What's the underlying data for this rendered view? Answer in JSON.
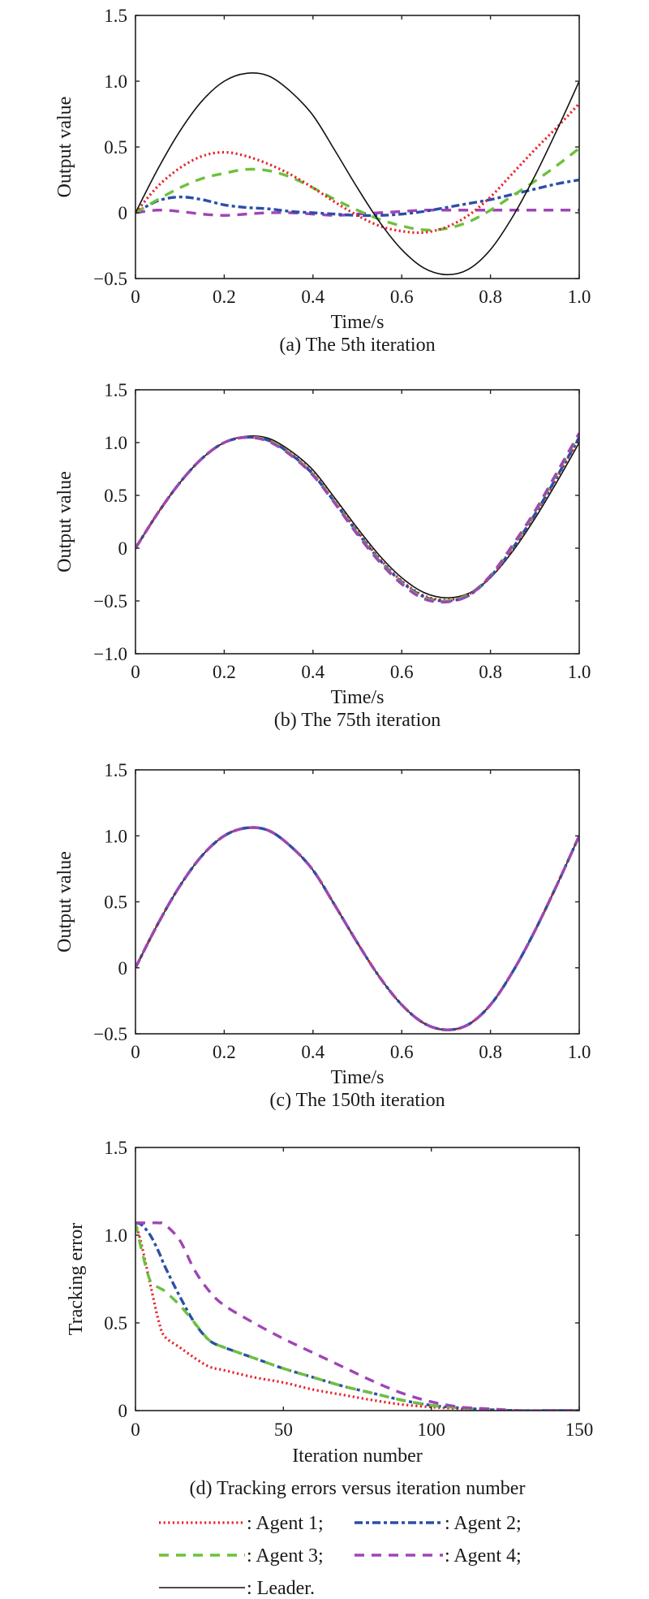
{
  "colors": {
    "agent1": "#e8232b",
    "agent2": "#2b4ea8",
    "agent3": "#6cc13d",
    "agent4": "#a045b5",
    "leader": "#111111"
  },
  "legend": {
    "entries": [
      {
        "series": "agent1",
        "label": ": Agent 1;"
      },
      {
        "series": "agent2",
        "label": ": Agent 2;"
      },
      {
        "series": "agent3",
        "label": ": Agent 3;"
      },
      {
        "series": "agent4",
        "label": ": Agent 4;"
      },
      {
        "series": "leader",
        "label": ": Leader."
      }
    ],
    "placement": "bottom"
  },
  "chart_data": [
    {
      "type": "line",
      "caption": "(a) The 5th iteration",
      "xlabel": "Time/s",
      "ylabel": "Output value",
      "xlim": [
        0,
        1.0
      ],
      "ylim": [
        -0.5,
        1.5
      ],
      "xticks": [
        0,
        0.2,
        0.4,
        0.6,
        0.8,
        1.0
      ],
      "xtick_labels": [
        "0",
        "0.2",
        "0.4",
        "0.6",
        "0.8",
        "1.0"
      ],
      "yticks": [
        -0.5,
        0,
        0.5,
        1.0,
        1.5
      ],
      "ytick_labels": [
        "−0.5",
        "0",
        "0.5",
        "1.0",
        "1.5"
      ],
      "grid": false,
      "x": [
        0,
        0.05,
        0.1,
        0.15,
        0.2,
        0.25,
        0.3,
        0.35,
        0.4,
        0.45,
        0.5,
        0.55,
        0.6,
        0.65,
        0.7,
        0.75,
        0.8,
        0.85,
        0.9,
        0.95,
        1.0
      ],
      "series": [
        {
          "name": "Leader",
          "key": "leader",
          "values": [
            0,
            0.33,
            0.62,
            0.85,
            1.0,
            1.06,
            1.04,
            0.92,
            0.74,
            0.47,
            0.19,
            -0.07,
            -0.28,
            -0.42,
            -0.47,
            -0.43,
            -0.28,
            -0.03,
            0.28,
            0.63,
            1.0
          ]
        },
        {
          "name": "Agent 1",
          "key": "agent1",
          "values": [
            0,
            0.2,
            0.34,
            0.43,
            0.46,
            0.43,
            0.37,
            0.29,
            0.19,
            0.08,
            -0.02,
            -0.1,
            -0.14,
            -0.15,
            -0.11,
            -0.02,
            0.12,
            0.3,
            0.48,
            0.65,
            0.83
          ]
        },
        {
          "name": "Agent 2",
          "key": "agent2",
          "values": [
            0,
            0.09,
            0.12,
            0.1,
            0.06,
            0.04,
            0.03,
            0.01,
            0,
            -0.01,
            -0.02,
            -0.02,
            -0.01,
            0.01,
            0.04,
            0.07,
            0.1,
            0.14,
            0.18,
            0.22,
            0.25
          ]
        },
        {
          "name": "Agent 3",
          "key": "agent3",
          "values": [
            0,
            0.1,
            0.19,
            0.26,
            0.3,
            0.33,
            0.32,
            0.27,
            0.19,
            0.1,
            0.02,
            -0.05,
            -0.1,
            -0.13,
            -0.12,
            -0.07,
            0.02,
            0.13,
            0.24,
            0.36,
            0.49
          ]
        },
        {
          "name": "Agent 4",
          "key": "agent4",
          "values": [
            0,
            0.02,
            0.01,
            -0.01,
            -0.02,
            -0.01,
            0,
            0,
            -0.01,
            -0.02,
            -0.01,
            0,
            0.01,
            0.02,
            0.02,
            0.02,
            0.02,
            0.02,
            0.02,
            0.02,
            0.02
          ]
        }
      ]
    },
    {
      "type": "line",
      "caption": "(b) The 75th iteration",
      "xlabel": "Time/s",
      "ylabel": "Output value",
      "xlim": [
        0,
        1.0
      ],
      "ylim": [
        -1.0,
        1.5
      ],
      "xticks": [
        0,
        0.2,
        0.4,
        0.6,
        0.8,
        1.0
      ],
      "xtick_labels": [
        "0",
        "0.2",
        "0.4",
        "0.6",
        "0.8",
        "1.0"
      ],
      "yticks": [
        -1.0,
        -0.5,
        0,
        0.5,
        1.0,
        1.5
      ],
      "ytick_labels": [
        "−1.0",
        "−0.5",
        "0",
        "0.5",
        "1.0",
        "1.5"
      ],
      "grid": false,
      "x": [
        0,
        0.05,
        0.1,
        0.15,
        0.2,
        0.25,
        0.3,
        0.35,
        0.4,
        0.45,
        0.5,
        0.55,
        0.6,
        0.65,
        0.7,
        0.75,
        0.8,
        0.85,
        0.9,
        0.95,
        1.0
      ],
      "series": [
        {
          "name": "Leader",
          "key": "leader",
          "values": [
            0,
            0.33,
            0.62,
            0.85,
            1.0,
            1.06,
            1.04,
            0.92,
            0.74,
            0.47,
            0.19,
            -0.07,
            -0.28,
            -0.42,
            -0.47,
            -0.43,
            -0.28,
            -0.03,
            0.28,
            0.63,
            1.0
          ]
        },
        {
          "name": "Agent 1",
          "key": "agent1",
          "values": [
            0,
            0.33,
            0.62,
            0.85,
            1.0,
            1.05,
            1.02,
            0.9,
            0.71,
            0.44,
            0.16,
            -0.1,
            -0.31,
            -0.45,
            -0.49,
            -0.44,
            -0.27,
            -0.01,
            0.31,
            0.67,
            1.04
          ]
        },
        {
          "name": "Agent 2",
          "key": "agent2",
          "values": [
            0,
            0.33,
            0.62,
            0.85,
            1.0,
            1.05,
            1.02,
            0.89,
            0.7,
            0.43,
            0.15,
            -0.11,
            -0.32,
            -0.46,
            -0.5,
            -0.45,
            -0.27,
            0.0,
            0.32,
            0.68,
            1.05
          ]
        },
        {
          "name": "Agent 3",
          "key": "agent3",
          "values": [
            0,
            0.33,
            0.62,
            0.85,
            1.0,
            1.05,
            1.02,
            0.89,
            0.7,
            0.43,
            0.14,
            -0.12,
            -0.33,
            -0.47,
            -0.5,
            -0.44,
            -0.26,
            0.02,
            0.34,
            0.71,
            1.08
          ]
        },
        {
          "name": "Agent 4",
          "key": "agent4",
          "values": [
            0,
            0.33,
            0.62,
            0.85,
            1.0,
            1.05,
            1.01,
            0.88,
            0.69,
            0.42,
            0.13,
            -0.13,
            -0.34,
            -0.48,
            -0.51,
            -0.45,
            -0.26,
            0.03,
            0.35,
            0.72,
            1.09
          ]
        }
      ]
    },
    {
      "type": "line",
      "caption": "(c) The 150th iteration",
      "xlabel": "Time/s",
      "ylabel": "Output value",
      "xlim": [
        0,
        1.0
      ],
      "ylim": [
        -0.5,
        1.5
      ],
      "xticks": [
        0,
        0.2,
        0.4,
        0.6,
        0.8,
        1.0
      ],
      "xtick_labels": [
        "0",
        "0.2",
        "0.4",
        "0.6",
        "0.8",
        "1.0"
      ],
      "yticks": [
        -0.5,
        0,
        0.5,
        1.0,
        1.5
      ],
      "ytick_labels": [
        "−0.5",
        "0",
        "0.5",
        "1.0",
        "1.5"
      ],
      "grid": false,
      "x": [
        0,
        0.05,
        0.1,
        0.15,
        0.2,
        0.25,
        0.3,
        0.35,
        0.4,
        0.45,
        0.5,
        0.55,
        0.6,
        0.65,
        0.7,
        0.75,
        0.8,
        0.85,
        0.9,
        0.95,
        1.0
      ],
      "series": [
        {
          "name": "Leader",
          "key": "leader",
          "values": [
            0,
            0.33,
            0.62,
            0.85,
            1.0,
            1.06,
            1.04,
            0.92,
            0.74,
            0.47,
            0.19,
            -0.07,
            -0.28,
            -0.42,
            -0.47,
            -0.43,
            -0.28,
            -0.03,
            0.28,
            0.63,
            1.0
          ]
        },
        {
          "name": "Agent 1",
          "key": "agent1",
          "values": [
            0,
            0.33,
            0.62,
            0.85,
            1.0,
            1.06,
            1.04,
            0.92,
            0.74,
            0.47,
            0.19,
            -0.07,
            -0.28,
            -0.42,
            -0.47,
            -0.43,
            -0.28,
            -0.03,
            0.28,
            0.63,
            1.0
          ]
        },
        {
          "name": "Agent 2",
          "key": "agent2",
          "values": [
            0,
            0.33,
            0.62,
            0.85,
            1.0,
            1.06,
            1.04,
            0.92,
            0.74,
            0.47,
            0.19,
            -0.07,
            -0.28,
            -0.42,
            -0.47,
            -0.43,
            -0.28,
            -0.03,
            0.28,
            0.63,
            1.0
          ]
        },
        {
          "name": "Agent 3",
          "key": "agent3",
          "values": [
            0,
            0.33,
            0.62,
            0.85,
            1.0,
            1.06,
            1.04,
            0.92,
            0.74,
            0.47,
            0.19,
            -0.07,
            -0.28,
            -0.42,
            -0.47,
            -0.43,
            -0.28,
            -0.03,
            0.28,
            0.63,
            1.0
          ]
        },
        {
          "name": "Agent 4",
          "key": "agent4",
          "values": [
            0,
            0.33,
            0.62,
            0.85,
            1.0,
            1.06,
            1.04,
            0.92,
            0.74,
            0.47,
            0.19,
            -0.07,
            -0.28,
            -0.42,
            -0.47,
            -0.43,
            -0.28,
            -0.03,
            0.28,
            0.63,
            1.0
          ]
        }
      ]
    },
    {
      "type": "line",
      "caption": "(d) Tracking errors versus iteration number",
      "xlabel": "Iteration number",
      "ylabel": "Tracking error",
      "xlim": [
        0,
        150
      ],
      "ylim": [
        0,
        1.5
      ],
      "xticks": [
        0,
        50,
        100,
        150
      ],
      "xtick_labels": [
        "0",
        "50",
        "100",
        "150"
      ],
      "yticks": [
        0,
        0.5,
        1.0,
        1.5
      ],
      "ytick_labels": [
        "0",
        "0.5",
        "1.0",
        "1.5"
      ],
      "grid": false,
      "x": [
        0,
        2,
        5,
        8,
        10,
        15,
        20,
        25,
        30,
        40,
        50,
        60,
        70,
        80,
        90,
        100,
        110,
        120,
        130,
        140,
        150
      ],
      "series": [
        {
          "name": "Agent 1",
          "key": "agent1",
          "values": [
            1.07,
            0.95,
            0.72,
            0.5,
            0.42,
            0.36,
            0.3,
            0.25,
            0.23,
            0.19,
            0.16,
            0.12,
            0.09,
            0.06,
            0.035,
            0.02,
            0.01,
            0.005,
            0,
            0,
            0
          ]
        },
        {
          "name": "Agent 2",
          "key": "agent2",
          "values": [
            1.07,
            1.06,
            1.0,
            0.9,
            0.82,
            0.65,
            0.5,
            0.4,
            0.36,
            0.3,
            0.24,
            0.19,
            0.14,
            0.1,
            0.06,
            0.03,
            0.015,
            0.005,
            0,
            0,
            0
          ]
        },
        {
          "name": "Agent 3",
          "key": "agent3",
          "values": [
            1.07,
            0.92,
            0.74,
            0.7,
            0.68,
            0.6,
            0.5,
            0.4,
            0.36,
            0.3,
            0.24,
            0.19,
            0.14,
            0.1,
            0.06,
            0.03,
            0.015,
            0.005,
            0,
            0,
            0
          ]
        },
        {
          "name": "Agent 4",
          "key": "agent4",
          "values": [
            1.07,
            1.07,
            1.07,
            1.07,
            1.06,
            0.97,
            0.8,
            0.68,
            0.6,
            0.5,
            0.41,
            0.33,
            0.25,
            0.17,
            0.1,
            0.05,
            0.02,
            0.01,
            0,
            0,
            0
          ]
        }
      ]
    }
  ]
}
